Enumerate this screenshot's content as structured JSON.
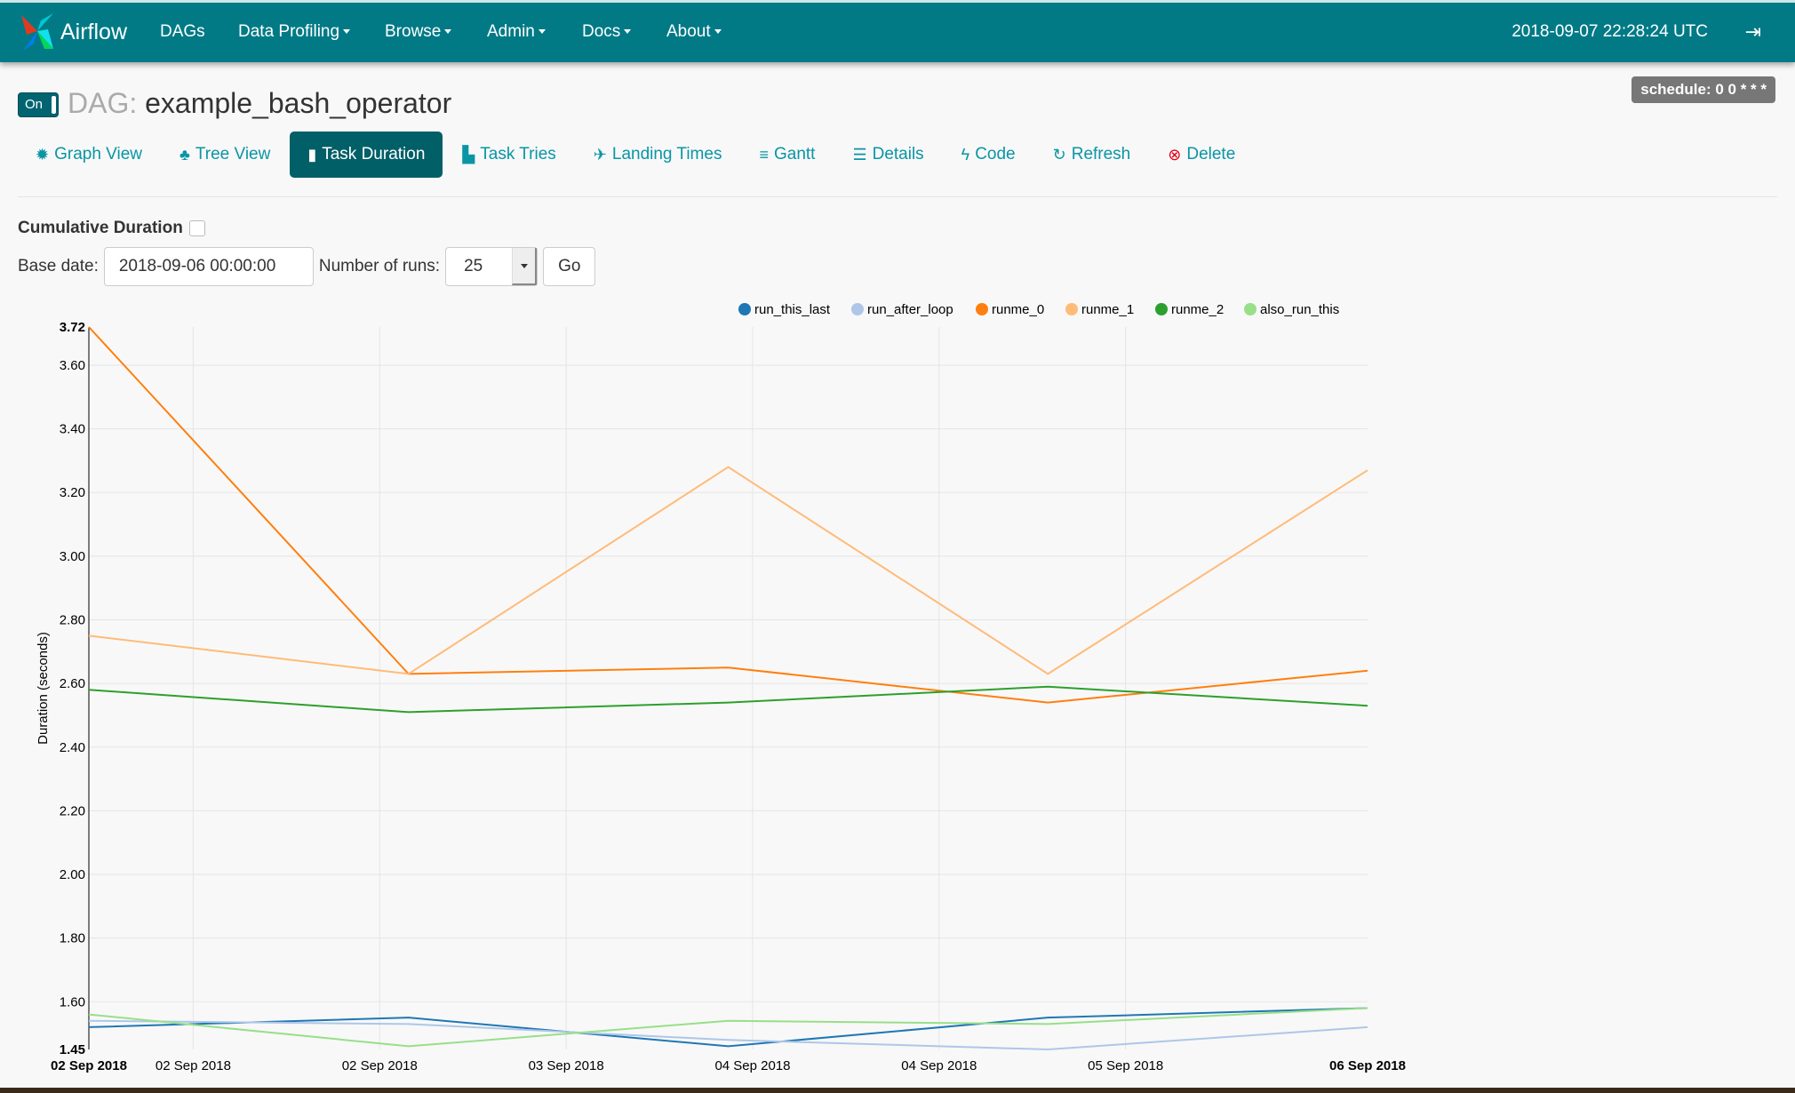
{
  "navbar": {
    "brand": "Airflow",
    "items": [
      {
        "label": "DAGs",
        "dropdown": false
      },
      {
        "label": "Data Profiling",
        "dropdown": true
      },
      {
        "label": "Browse",
        "dropdown": true
      },
      {
        "label": "Admin",
        "dropdown": true
      },
      {
        "label": "Docs",
        "dropdown": true
      },
      {
        "label": "About",
        "dropdown": true
      }
    ],
    "clock": "2018-09-07 22:28:24 UTC",
    "logout_icon": "sign-out-icon",
    "color": "#017a86"
  },
  "dag": {
    "toggle": "On",
    "prefix": "DAG:",
    "name": "example_bash_operator",
    "schedule": "schedule: 0 0 * * *"
  },
  "tabs": [
    {
      "label": "Graph View",
      "icon": "✹",
      "name": "graph-view",
      "active": false
    },
    {
      "label": "Tree View",
      "icon": "♣",
      "name": "tree-view",
      "active": false
    },
    {
      "label": "Task Duration",
      "icon": "▮",
      "name": "task-duration",
      "active": true
    },
    {
      "label": "Task Tries",
      "icon": "▙",
      "name": "task-tries",
      "active": false
    },
    {
      "label": "Landing Times",
      "icon": "✈",
      "name": "landing-times",
      "active": false
    },
    {
      "label": "Gantt",
      "icon": "≡",
      "name": "gantt",
      "active": false
    },
    {
      "label": "Details",
      "icon": "☰",
      "name": "details",
      "active": false
    },
    {
      "label": "Code",
      "icon": "ϟ",
      "name": "code",
      "active": false
    },
    {
      "label": "Refresh",
      "icon": "↻",
      "name": "refresh",
      "active": false
    },
    {
      "label": "Delete",
      "icon": "⊗",
      "name": "delete",
      "active": false
    }
  ],
  "filters": {
    "cumulative_label": "Cumulative Duration",
    "cumulative_checked": false,
    "base_date_label": "Base date:",
    "base_date_value": "2018-09-06 00:00:00",
    "runs_label": "Number of runs:",
    "runs_value": "25",
    "go_label": "Go"
  },
  "chart_data": {
    "type": "line",
    "ylabel": "Duration (seconds)",
    "ylim": [
      1.45,
      3.72
    ],
    "yticks": [
      "1.45",
      "1.60",
      "1.80",
      "2.00",
      "2.20",
      "2.40",
      "2.60",
      "2.80",
      "3.00",
      "3.20",
      "3.40",
      "3.60",
      "3.72"
    ],
    "x": [
      "2018-09-02",
      "2018-09-03",
      "2018-09-04",
      "2018-09-05",
      "2018-09-06"
    ],
    "xlim": [
      "2018-09-02",
      "2018-09-06"
    ],
    "xticks": [
      {
        "at": "2018-09-02T00:00",
        "label": "02 Sep 2018",
        "edge": true
      },
      {
        "at": "2018-09-02T07:50",
        "label": "02 Sep 2018"
      },
      {
        "at": "2018-09-02T21:50",
        "label": "02 Sep 2018"
      },
      {
        "at": "2018-09-03T11:50",
        "label": "03 Sep 2018"
      },
      {
        "at": "2018-09-04T01:50",
        "label": "04 Sep 2018"
      },
      {
        "at": "2018-09-04T15:50",
        "label": "04 Sep 2018"
      },
      {
        "at": "2018-09-05T05:50",
        "label": "05 Sep 2018"
      },
      {
        "at": "2018-09-06T00:00",
        "label": "06 Sep 2018",
        "edge": true
      }
    ],
    "grid": true,
    "legend_position": "top-right",
    "series": [
      {
        "name": "run_this_last",
        "color": "#1f77b4",
        "values": [
          1.52,
          1.55,
          1.46,
          1.55,
          1.58
        ]
      },
      {
        "name": "run_after_loop",
        "color": "#aec7e8",
        "values": [
          1.54,
          1.53,
          1.48,
          1.45,
          1.52
        ]
      },
      {
        "name": "runme_0",
        "color": "#ff7f0e",
        "values": [
          3.72,
          2.63,
          2.65,
          2.54,
          2.64
        ]
      },
      {
        "name": "runme_1",
        "color": "#ffbb78",
        "values": [
          2.75,
          2.63,
          3.28,
          2.63,
          3.27
        ]
      },
      {
        "name": "runme_2",
        "color": "#2ca02c",
        "values": [
          2.58,
          2.51,
          2.54,
          2.59,
          2.53
        ]
      },
      {
        "name": "also_run_this",
        "color": "#98df8a",
        "values": [
          1.56,
          1.46,
          1.54,
          1.53,
          1.58
        ]
      }
    ]
  }
}
